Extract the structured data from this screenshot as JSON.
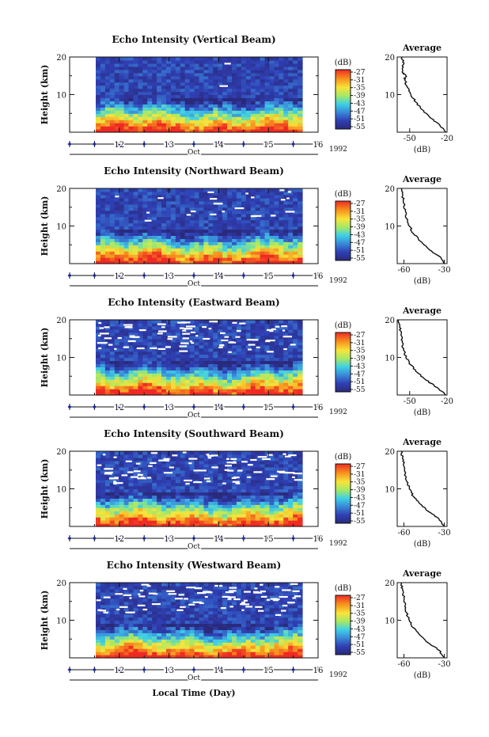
{
  "figure": {
    "xlabel": "Local Time (Day)",
    "colors": {
      "axis": "#111111",
      "time_marker": "#1a2a9a"
    }
  },
  "chart_data": [
    {
      "type": "heatmap",
      "title": "Echo Intensity (Vertical Beam)",
      "ylabel": "Height (km)",
      "ylim": [
        0,
        20
      ],
      "yticks": [
        "10",
        "20"
      ],
      "xticks": [
        "12",
        "13",
        "14",
        "15",
        "16"
      ],
      "xlabel": "Oct",
      "year": "1992",
      "colorbar": {
        "unit": "(dB)",
        "ticks": [
          "-27",
          "-31",
          "-35",
          "-39",
          "-43",
          "-47",
          "-51",
          "-55"
        ]
      },
      "gaps": 2,
      "profile": {
        "title": "Average",
        "xlabel": "(dB)",
        "xticks": [
          "-50",
          "-20"
        ],
        "xlim": [
          -60,
          -20
        ],
        "ylim": [
          0,
          20
        ],
        "yticks": [
          "10",
          "20"
        ],
        "heights": [
          0,
          2,
          4,
          6,
          8,
          10,
          12,
          14,
          15,
          16,
          18,
          20
        ],
        "values": [
          -21,
          -26,
          -34,
          -40,
          -45,
          -49,
          -52,
          -54,
          -53,
          -56,
          -55,
          -56
        ]
      }
    },
    {
      "type": "heatmap",
      "title": "Echo Intensity (Northward Beam)",
      "ylabel": "Height (km)",
      "ylim": [
        0,
        20
      ],
      "yticks": [
        "10",
        "20"
      ],
      "xticks": [
        "12",
        "13",
        "14",
        "15",
        "16"
      ],
      "xlabel": "Oct",
      "year": "1992",
      "colorbar": {
        "unit": "(dB)",
        "ticks": [
          "-27",
          "-31",
          "-35",
          "-39",
          "-43",
          "-47",
          "-51",
          "-55"
        ]
      },
      "gaps": 22,
      "profile": {
        "title": "Average",
        "xlabel": "(dB)",
        "xticks": [
          "-60",
          "-30"
        ],
        "xlim": [
          -65,
          -28
        ],
        "ylim": [
          0,
          20
        ],
        "yticks": [
          "10",
          "20"
        ],
        "heights": [
          0,
          2,
          4,
          6,
          8,
          10,
          12,
          14,
          16,
          18,
          20
        ],
        "values": [
          -30,
          -34,
          -42,
          -48,
          -53,
          -56,
          -58,
          -59,
          -60,
          -61,
          -62
        ]
      }
    },
    {
      "type": "heatmap",
      "title": "Echo Intensity (Eastward Beam)",
      "ylabel": "Height (km)",
      "ylim": [
        0,
        20
      ],
      "yticks": [
        "10",
        "20"
      ],
      "xticks": [
        "12",
        "13",
        "14",
        "15",
        "16"
      ],
      "xlabel": "Oct",
      "year": "1992",
      "colorbar": {
        "unit": "(dB)",
        "ticks": [
          "-27",
          "-31",
          "-35",
          "-39",
          "-43",
          "-47",
          "-51",
          "-55"
        ]
      },
      "gaps": 80,
      "profile": {
        "title": "Average",
        "xlabel": "(dB)",
        "xticks": [
          "-50",
          "-20"
        ],
        "xlim": [
          -60,
          -20
        ],
        "ylim": [
          0,
          20
        ],
        "yticks": [
          "10",
          "20"
        ],
        "heights": [
          0,
          2,
          4,
          6,
          8,
          10,
          12,
          14,
          16,
          18,
          20
        ],
        "values": [
          -21,
          -28,
          -37,
          -44,
          -49,
          -53,
          -55,
          -56,
          -57,
          -58,
          -59
        ]
      }
    },
    {
      "type": "heatmap",
      "title": "Echo Intensity (Southward Beam)",
      "ylabel": "Height (km)",
      "ylim": [
        0,
        20
      ],
      "yticks": [
        "10",
        "20"
      ],
      "xticks": [
        "12",
        "13",
        "14",
        "15",
        "16"
      ],
      "xlabel": "Oct",
      "year": "1992",
      "colorbar": {
        "unit": "(dB)",
        "ticks": [
          "-27",
          "-31",
          "-35",
          "-39",
          "-43",
          "-47",
          "-51",
          "-55"
        ]
      },
      "gaps": 80,
      "profile": {
        "title": "Average",
        "xlabel": "(dB)",
        "xticks": [
          "-60",
          "-30"
        ],
        "xlim": [
          -65,
          -28
        ],
        "ylim": [
          0,
          20
        ],
        "yticks": [
          "10",
          "20"
        ],
        "heights": [
          0,
          2,
          4,
          6,
          8,
          10,
          12,
          14,
          16,
          18,
          20
        ],
        "values": [
          -30,
          -34,
          -42,
          -48,
          -53,
          -56,
          -58,
          -59,
          -60,
          -61,
          -62
        ]
      }
    },
    {
      "type": "heatmap",
      "title": "Echo Intensity (Westward Beam)",
      "ylabel": "Height (km)",
      "ylim": [
        0,
        20
      ],
      "yticks": [
        "10",
        "20"
      ],
      "xticks": [
        "12",
        "13",
        "14",
        "15",
        "16"
      ],
      "xlabel": "Oct",
      "year": "1992",
      "colorbar": {
        "unit": "(dB)",
        "ticks": [
          "-27",
          "-31",
          "-35",
          "-39",
          "-43",
          "-47",
          "-51",
          "-55"
        ]
      },
      "gaps": 80,
      "profile": {
        "title": "Average",
        "xlabel": "(dB)",
        "xticks": [
          "-60",
          "-30"
        ],
        "xlim": [
          -65,
          -28
        ],
        "ylim": [
          0,
          20
        ],
        "yticks": [
          "10",
          "20"
        ],
        "heights": [
          0,
          2,
          4,
          6,
          8,
          10,
          12,
          14,
          16,
          18,
          20
        ],
        "values": [
          -30,
          -34,
          -42,
          -48,
          -53,
          -56,
          -58,
          -59,
          -60,
          -61,
          -62
        ]
      }
    }
  ]
}
